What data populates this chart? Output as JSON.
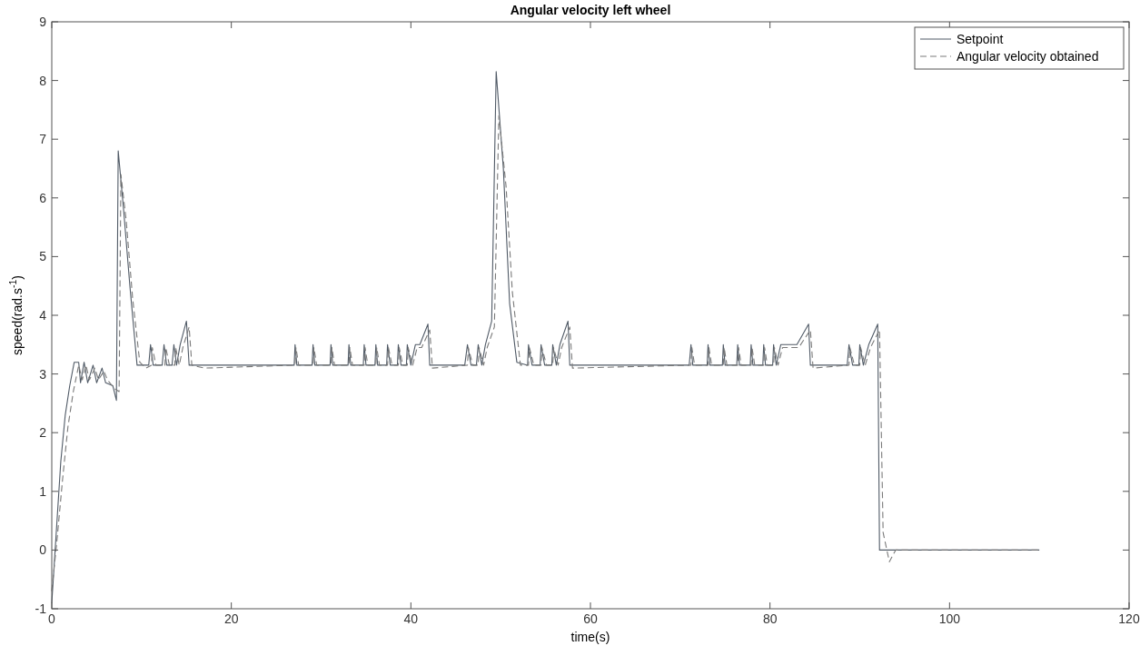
{
  "chart_data": {
    "type": "line",
    "title": "Angular velocity left wheel",
    "xlabel": "time(s)",
    "ylabel": "speed(rad.s$^{-1}$)",
    "xlim": [
      0,
      120
    ],
    "xticks": [
      0,
      20,
      40,
      60,
      80,
      100,
      120
    ],
    "ylim": [
      -1,
      9
    ],
    "yticks": [
      -1,
      0,
      1,
      2,
      3,
      4,
      5,
      6,
      7,
      8,
      9
    ],
    "grid": false,
    "legend": "top right",
    "series": [
      {
        "name": "Setpoint",
        "color": "#505a66",
        "line_style": "solid",
        "x": [
          0,
          0.5,
          1,
          1.5,
          2,
          2.5,
          3,
          3.2,
          3.6,
          4,
          4.6,
          5,
          5.6,
          6,
          6.8,
          7.2,
          7.4,
          8,
          8.7,
          9.5,
          10.8,
          11,
          11.3,
          12.3,
          12.5,
          12.8,
          13.4,
          13.6,
          13.9,
          14.3,
          15,
          15.3,
          17,
          27,
          27.1,
          27.3,
          29,
          29.1,
          29.3,
          31,
          31.1,
          31.3,
          33,
          33.1,
          33.3,
          34.7,
          34.8,
          35,
          36,
          36.1,
          36.3,
          37.3,
          37.4,
          37.7,
          38.5,
          38.6,
          38.9,
          39.5,
          39.6,
          40,
          40.5,
          41,
          41.9,
          42.1,
          46,
          46.3,
          46.7,
          47.3,
          47.5,
          47.9,
          48.3,
          49,
          49.5,
          50.3,
          51,
          51.8,
          53,
          53.1,
          53.5,
          54.4,
          54.5,
          54.9,
          55.7,
          55.8,
          56.2,
          56.6,
          57.5,
          57.7,
          71,
          71.2,
          71.4,
          73,
          73.1,
          73.3,
          74.7,
          74.8,
          75,
          76.3,
          76.4,
          76.6,
          77.8,
          77.9,
          78.1,
          79.2,
          79.3,
          79.5,
          80.3,
          80.4,
          80.7,
          81.2,
          82,
          83,
          84.3,
          84.5,
          88.6,
          88.8,
          89.2,
          89.9,
          90,
          90.4,
          91,
          92,
          92.2,
          110
        ],
        "values": [
          -0.9,
          0.3,
          1.5,
          2.3,
          2.8,
          3.2,
          3.2,
          2.85,
          3.2,
          2.85,
          3.15,
          2.85,
          3.1,
          2.85,
          2.8,
          2.55,
          6.8,
          5.8,
          4.5,
          3.15,
          3.15,
          3.5,
          3.15,
          3.15,
          3.5,
          3.15,
          3.15,
          3.5,
          3.15,
          3.5,
          3.9,
          3.15,
          3.15,
          3.15,
          3.5,
          3.15,
          3.15,
          3.5,
          3.15,
          3.15,
          3.5,
          3.15,
          3.15,
          3.5,
          3.15,
          3.15,
          3.5,
          3.15,
          3.15,
          3.5,
          3.15,
          3.15,
          3.5,
          3.15,
          3.15,
          3.5,
          3.15,
          3.15,
          3.5,
          3.15,
          3.5,
          3.5,
          3.85,
          3.15,
          3.15,
          3.5,
          3.15,
          3.15,
          3.5,
          3.15,
          3.5,
          3.9,
          8.15,
          6.5,
          4.2,
          3.2,
          3.15,
          3.5,
          3.15,
          3.15,
          3.5,
          3.15,
          3.15,
          3.5,
          3.15,
          3.5,
          3.9,
          3.15,
          3.15,
          3.5,
          3.15,
          3.15,
          3.5,
          3.15,
          3.15,
          3.5,
          3.15,
          3.15,
          3.5,
          3.15,
          3.15,
          3.5,
          3.15,
          3.15,
          3.5,
          3.15,
          3.15,
          3.5,
          3.15,
          3.5,
          3.5,
          3.5,
          3.85,
          3.15,
          3.15,
          3.5,
          3.15,
          3.15,
          3.5,
          3.15,
          3.5,
          3.85,
          0,
          0
        ]
      },
      {
        "name": "Angular velocity obtained",
        "color": "#7a7a7a",
        "line_style": "dashed",
        "x": [
          0,
          0.6,
          1.2,
          1.8,
          2.4,
          3,
          3.4,
          3.8,
          4.2,
          4.8,
          5.2,
          5.8,
          6.2,
          7,
          7.5,
          7.7,
          8.3,
          9,
          9.8,
          10.5,
          11.1,
          11.2,
          11.6,
          12.6,
          12.7,
          13.1,
          13.7,
          13.8,
          14.2,
          14.6,
          15.3,
          15.6,
          17,
          27.1,
          27.2,
          27.5,
          29.1,
          29.2,
          29.5,
          31.1,
          31.2,
          31.5,
          33.1,
          33.2,
          33.5,
          34.8,
          34.9,
          35.2,
          36.1,
          36.2,
          36.5,
          37.4,
          37.5,
          37.9,
          38.6,
          38.7,
          39.1,
          39.6,
          39.7,
          40.2,
          40.7,
          41.2,
          42.1,
          42.4,
          46.3,
          46.4,
          46.9,
          47.5,
          47.6,
          48.1,
          48.5,
          49.3,
          49.8,
          50.6,
          51.3,
          52.2,
          53.1,
          53.2,
          53.7,
          54.5,
          54.6,
          55.1,
          55.8,
          55.9,
          56.4,
          56.8,
          57.7,
          58,
          71.2,
          71.3,
          71.6,
          73.1,
          73.2,
          73.5,
          74.8,
          74.9,
          75.2,
          76.4,
          76.5,
          76.8,
          77.9,
          78,
          78.3,
          79.3,
          79.4,
          79.7,
          80.4,
          80.5,
          80.9,
          81.4,
          82.2,
          83.2,
          84.5,
          84.8,
          88.8,
          88.9,
          89.4,
          90,
          90.1,
          90.6,
          91.2,
          92.2,
          92.6,
          93.3,
          94,
          110
        ],
        "values": [
          -0.7,
          0.2,
          1.2,
          2.1,
          2.7,
          3.15,
          2.9,
          3.15,
          2.9,
          3.1,
          2.9,
          3.05,
          2.9,
          2.75,
          2.7,
          6.4,
          5.6,
          4.3,
          3.2,
          3.1,
          3.15,
          3.45,
          3.15,
          3.15,
          3.45,
          3.15,
          3.15,
          3.45,
          3.15,
          3.45,
          3.8,
          3.15,
          3.1,
          3.15,
          3.45,
          3.15,
          3.15,
          3.45,
          3.15,
          3.15,
          3.45,
          3.15,
          3.15,
          3.45,
          3.15,
          3.15,
          3.45,
          3.15,
          3.15,
          3.45,
          3.15,
          3.15,
          3.45,
          3.15,
          3.15,
          3.45,
          3.15,
          3.15,
          3.45,
          3.15,
          3.45,
          3.45,
          3.75,
          3.1,
          3.15,
          3.45,
          3.15,
          3.15,
          3.45,
          3.15,
          3.45,
          3.8,
          7.4,
          6.2,
          4.4,
          3.15,
          3.15,
          3.45,
          3.15,
          3.15,
          3.45,
          3.15,
          3.15,
          3.45,
          3.15,
          3.45,
          3.8,
          3.1,
          3.15,
          3.45,
          3.15,
          3.15,
          3.45,
          3.15,
          3.15,
          3.45,
          3.15,
          3.15,
          3.45,
          3.15,
          3.15,
          3.45,
          3.15,
          3.15,
          3.45,
          3.15,
          3.15,
          3.45,
          3.15,
          3.45,
          3.45,
          3.45,
          3.75,
          3.1,
          3.15,
          3.45,
          3.15,
          3.15,
          3.45,
          3.15,
          3.45,
          3.75,
          0.3,
          -0.2,
          0,
          0
        ]
      }
    ]
  }
}
